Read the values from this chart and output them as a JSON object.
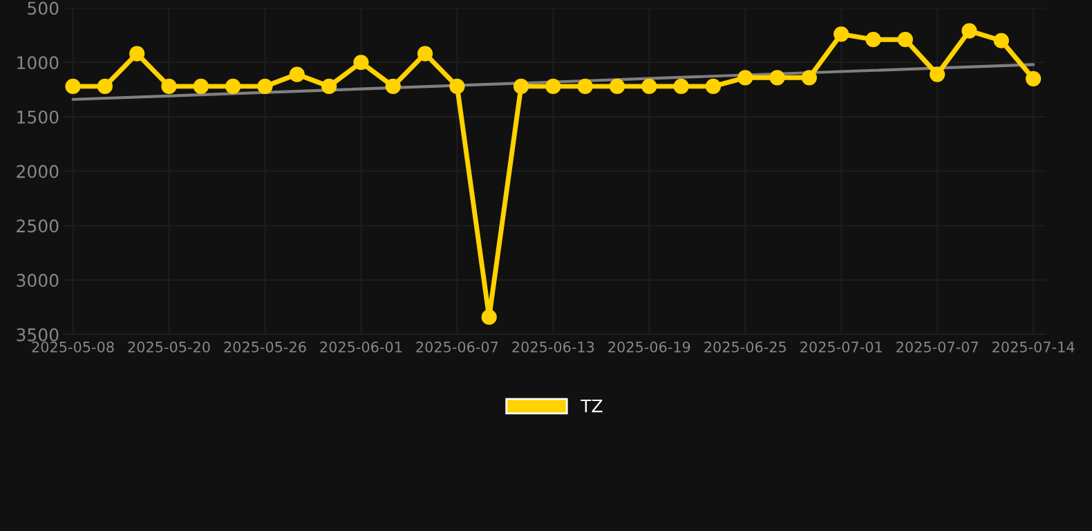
{
  "chart_data": {
    "type": "line",
    "categories": [
      "2025-05-08",
      null,
      null,
      "2025-05-20",
      null,
      null,
      "2025-05-26",
      null,
      null,
      "2025-06-01",
      null,
      null,
      "2025-06-07",
      null,
      null,
      "2025-06-13",
      null,
      null,
      "2025-06-19",
      null,
      null,
      "2025-06-25",
      null,
      null,
      "2025-07-01",
      null,
      null,
      "2025-07-07",
      null,
      null,
      "2025-07-14"
    ],
    "series": [
      {
        "name": "TZ",
        "color": "#ffd200",
        "marker": "circle",
        "values": [
          1220,
          1220,
          920,
          1220,
          1220,
          1220,
          1220,
          1110,
          1220,
          1000,
          1220,
          920,
          1220,
          3340,
          1220,
          1220,
          1220,
          1220,
          1220,
          1220,
          1220,
          1140,
          1140,
          1140,
          740,
          790,
          790,
          1110,
          710,
          800,
          1150
        ]
      },
      {
        "color": "#808080",
        "marker": "none",
        "values": [
          1340,
          null,
          null,
          null,
          null,
          null,
          null,
          null,
          null,
          null,
          null,
          null,
          null,
          null,
          null,
          null,
          null,
          null,
          null,
          null,
          null,
          null,
          null,
          null,
          null,
          null,
          null,
          null,
          null,
          null,
          1020
        ]
      }
    ],
    "ylim": [
      3500,
      500
    ],
    "yticks": [
      500,
      1000,
      1500,
      2000,
      2500,
      3000,
      3500
    ],
    "grid": true,
    "legend": "bottom",
    "line_style": "solid"
  }
}
